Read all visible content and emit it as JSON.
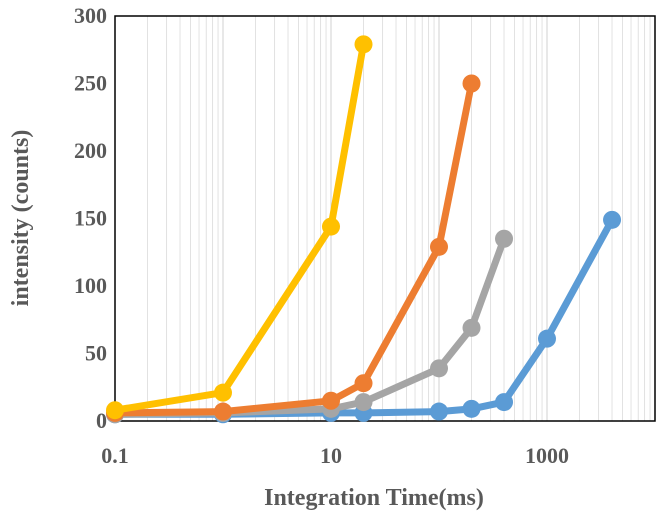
{
  "chart_data": {
    "type": "line",
    "title": "",
    "xlabel": "Integration Time(ms)",
    "ylabel": "intensity (counts)",
    "x_scale": "log",
    "xlim": [
      0.1,
      10000
    ],
    "ylim": [
      0,
      300
    ],
    "x_ticks": [
      0.1,
      10,
      1000
    ],
    "x_tick_labels": [
      "0.1",
      "10",
      "1000"
    ],
    "y_ticks": [
      0,
      50,
      100,
      150,
      200,
      250,
      300
    ],
    "y_tick_labels": [
      "0",
      "50",
      "100",
      "150",
      "200",
      "250",
      "300"
    ],
    "grid": "vertical log grid lines",
    "legend": "none",
    "series": [
      {
        "color": "#5B9BD5",
        "x": [
          0.1,
          1,
          10,
          20,
          100,
          200,
          400,
          1000,
          4000
        ],
        "y": [
          5,
          5,
          6,
          6,
          7,
          9,
          14,
          61,
          149
        ]
      },
      {
        "color": "#A5A5A5",
        "x": [
          0.1,
          1,
          10,
          20,
          100,
          200,
          400
        ],
        "y": [
          5,
          6,
          9,
          14,
          39,
          69,
          135
        ]
      },
      {
        "color": "#ED7D31",
        "x": [
          0.1,
          1,
          10,
          20,
          100,
          200
        ],
        "y": [
          6,
          7,
          15,
          28,
          129,
          250
        ]
      },
      {
        "color": "#FFC000",
        "x": [
          0.1,
          1,
          10,
          20
        ],
        "y": [
          8,
          21,
          144,
          279
        ]
      }
    ]
  }
}
